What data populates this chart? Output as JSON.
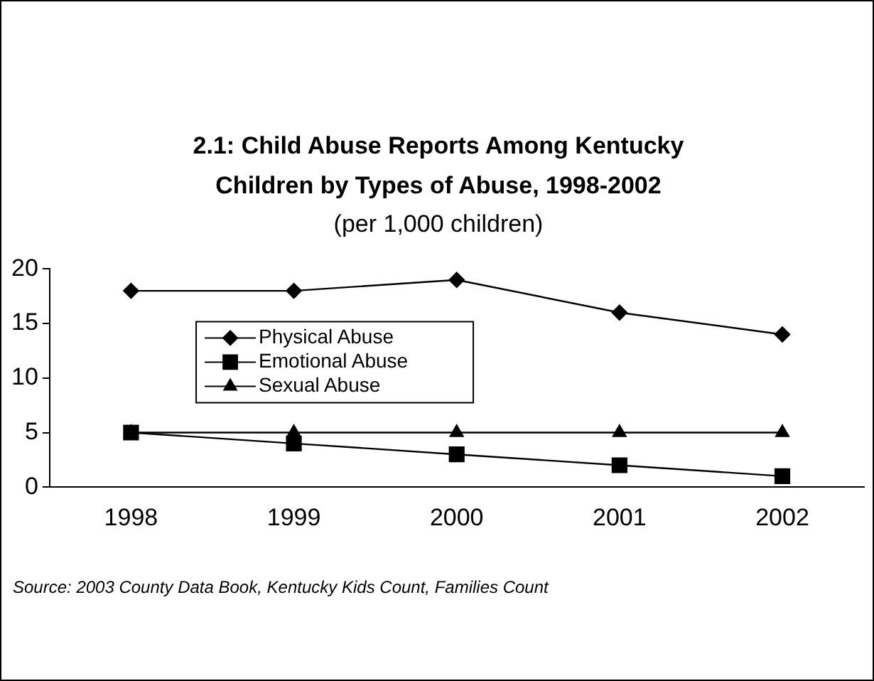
{
  "chart_data": {
    "type": "line",
    "title": "2.1:  Child Abuse Reports Among Kentucky Children by Types of Abuse, 1998-2002",
    "subtitle": "(per 1,000 children)",
    "categories": [
      "1998",
      "1999",
      "2000",
      "2001",
      "2002"
    ],
    "series": [
      {
        "name": "Physical Abuse",
        "color": "#000000",
        "marker": "diamond",
        "values": [
          18,
          18,
          19,
          16,
          14
        ]
      },
      {
        "name": "Emotional Abuse",
        "color": "#000000",
        "marker": "square",
        "values": [
          5,
          4,
          3,
          2,
          1
        ]
      },
      {
        "name": "Sexual Abuse",
        "color": "#000000",
        "marker": "triangle",
        "values": [
          5,
          5,
          5,
          5,
          5
        ]
      }
    ],
    "ylim": [
      0,
      20
    ],
    "yticks": [
      0,
      5,
      10,
      15,
      20
    ],
    "grid": false,
    "legend": "left",
    "annotations": [
      "Source: 2003 County Data Book, Kentucky Kids Count, Families Count"
    ]
  }
}
